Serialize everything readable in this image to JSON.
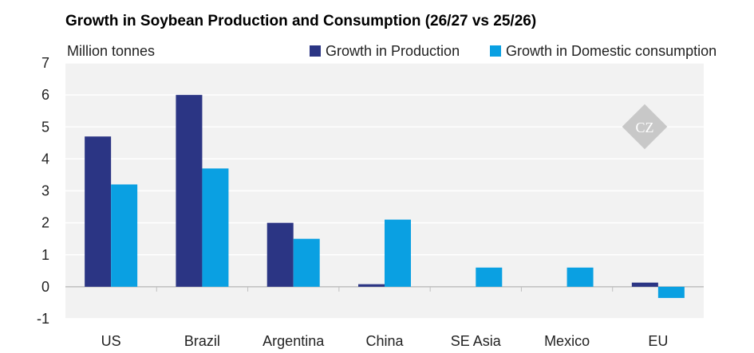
{
  "chart_data": {
    "type": "bar",
    "title": "Growth in Soybean Production and Consumption (26/27 vs 25/26)",
    "ylabel": "Million tonnes",
    "xlabel": "",
    "categories": [
      "US",
      "Brazil",
      "Argentina",
      "China",
      "SE Asia",
      "Mexico",
      "EU"
    ],
    "series": [
      {
        "name": "Growth in Production",
        "color": "#2b3584",
        "values": [
          4.7,
          6.0,
          2.0,
          0.08,
          0,
          0,
          0.13
        ]
      },
      {
        "name": "Growth in Domestic consumption",
        "color": "#0aa0e2",
        "values": [
          3.2,
          3.7,
          1.5,
          2.1,
          0.6,
          0.6,
          -0.35
        ]
      }
    ],
    "ylim": [
      -1,
      7
    ],
    "yticks": [
      -1,
      0,
      1,
      2,
      3,
      4,
      5,
      6,
      7
    ],
    "grid": true,
    "legend": "top-right",
    "plot_background": "#f2f2f2",
    "gridline_color": "#ffffff",
    "watermark": {
      "icon": "cz-diamond-logo",
      "text": "CZ",
      "color": "#c8c8c8"
    }
  }
}
